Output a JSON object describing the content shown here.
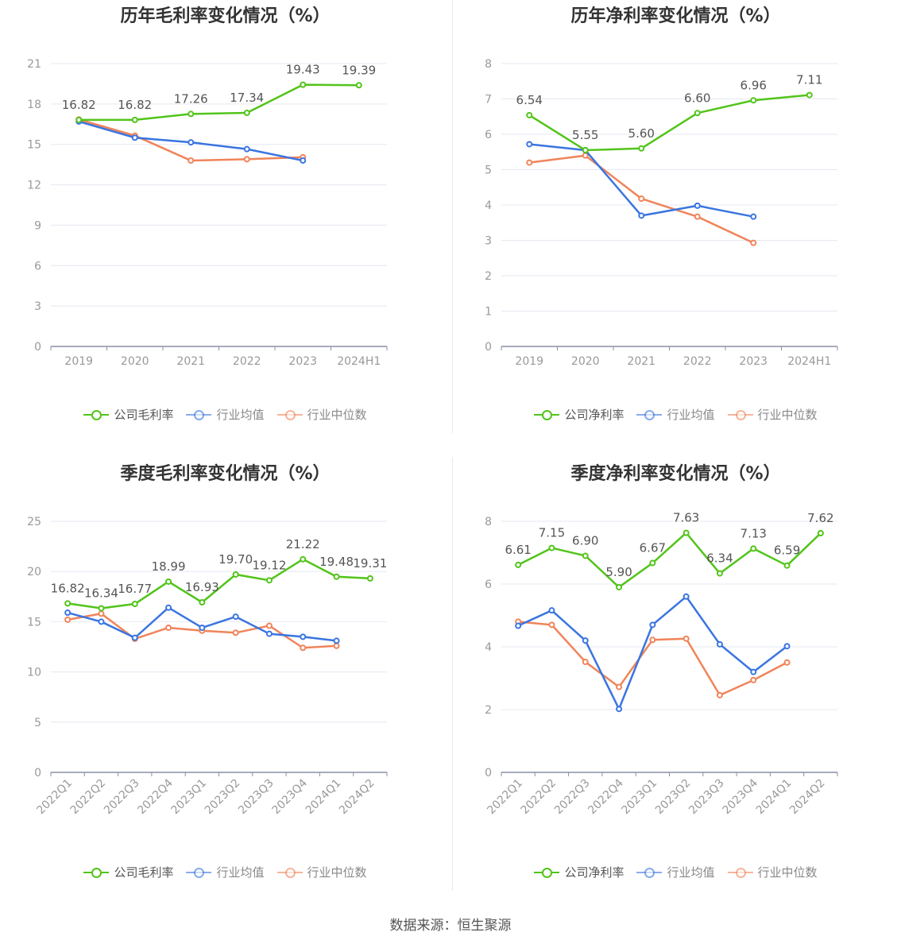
{
  "colors": {
    "company": "#52c41a",
    "avg": "#3a75e0",
    "median": "#f0845a",
    "grid": "#e6e8f2",
    "axis": "#8c8fa6",
    "text": "#999999"
  },
  "source": "数据来源：恒生聚源",
  "chart_data": [
    {
      "type": "line",
      "title": "历年毛利率变化情况（%）",
      "categories": [
        "2019",
        "2020",
        "2021",
        "2022",
        "2023",
        "2024H1"
      ],
      "ylim": [
        0,
        21
      ],
      "yticks": [
        0,
        3,
        6,
        9,
        12,
        15,
        18,
        21
      ],
      "grid": true,
      "legend": "bottom-center",
      "series": [
        {
          "name": "公司毛利率",
          "key": "company",
          "labels": true,
          "values": [
            16.82,
            16.82,
            17.26,
            17.34,
            19.43,
            19.39
          ]
        },
        {
          "name": "行业均值",
          "key": "avg",
          "values": [
            16.7,
            15.5,
            15.15,
            14.65,
            13.8,
            null
          ]
        },
        {
          "name": "行业中位数",
          "key": "median",
          "values": [
            16.85,
            15.65,
            13.8,
            13.9,
            14.05,
            null
          ]
        }
      ]
    },
    {
      "type": "line",
      "title": "历年净利率变化情况（%）",
      "categories": [
        "2019",
        "2020",
        "2021",
        "2022",
        "2023",
        "2024H1"
      ],
      "ylim": [
        0,
        8
      ],
      "yticks": [
        0,
        1,
        2,
        3,
        4,
        5,
        6,
        7,
        8
      ],
      "grid": true,
      "legend": "bottom-center",
      "series": [
        {
          "name": "公司净利率",
          "key": "company",
          "labels": true,
          "values": [
            6.54,
            5.55,
            5.6,
            6.6,
            6.96,
            7.11
          ]
        },
        {
          "name": "行业均值",
          "key": "avg",
          "values": [
            5.72,
            5.55,
            3.7,
            3.98,
            3.67,
            null
          ]
        },
        {
          "name": "行业中位数",
          "key": "median",
          "values": [
            5.2,
            5.4,
            4.18,
            3.67,
            2.93,
            null
          ]
        }
      ]
    },
    {
      "type": "line",
      "title": "季度毛利率变化情况（%）",
      "categories": [
        "2022Q1",
        "2022Q2",
        "2022Q3",
        "2022Q4",
        "2023Q1",
        "2023Q2",
        "2023Q3",
        "2023Q4",
        "2024Q1",
        "2024Q2"
      ],
      "ylim": [
        0,
        25
      ],
      "yticks": [
        0,
        5,
        10,
        15,
        20,
        25
      ],
      "grid": true,
      "legend": "bottom-center",
      "series": [
        {
          "name": "公司毛利率",
          "key": "company",
          "labels": true,
          "values": [
            16.82,
            16.34,
            16.77,
            18.99,
            16.93,
            19.7,
            19.12,
            21.22,
            19.48,
            19.31
          ]
        },
        {
          "name": "行业均值",
          "key": "avg",
          "values": [
            15.9,
            15.0,
            13.4,
            16.4,
            14.4,
            15.5,
            13.8,
            13.5,
            13.1,
            null
          ]
        },
        {
          "name": "行业中位数",
          "key": "median",
          "values": [
            15.2,
            15.8,
            13.3,
            14.4,
            14.1,
            13.9,
            14.6,
            12.4,
            12.6,
            null
          ]
        }
      ]
    },
    {
      "type": "line",
      "title": "季度净利率变化情况（%）",
      "categories": [
        "2022Q1",
        "2022Q2",
        "2022Q3",
        "2022Q4",
        "2023Q1",
        "2023Q2",
        "2023Q3",
        "2023Q4",
        "2024Q1",
        "2024Q2"
      ],
      "ylim": [
        0,
        8
      ],
      "yticks": [
        0,
        2,
        4,
        6,
        8
      ],
      "grid": true,
      "legend": "bottom-center",
      "series": [
        {
          "name": "公司净利率",
          "key": "company",
          "labels": true,
          "values": [
            6.61,
            7.15,
            6.9,
            5.9,
            6.67,
            7.63,
            6.34,
            7.13,
            6.59,
            7.62
          ]
        },
        {
          "name": "行业均值",
          "key": "avg",
          "values": [
            4.67,
            5.16,
            4.2,
            2.02,
            4.7,
            5.6,
            4.08,
            3.2,
            4.02,
            null
          ]
        },
        {
          "name": "行业中位数",
          "key": "median",
          "values": [
            4.8,
            4.7,
            3.52,
            2.72,
            4.22,
            4.26,
            2.46,
            2.94,
            3.5,
            null
          ]
        }
      ]
    }
  ]
}
